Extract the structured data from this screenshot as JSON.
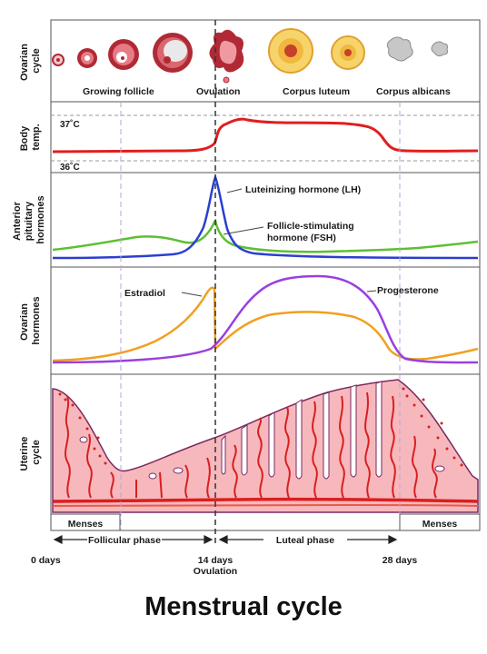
{
  "title": "Menstrual cycle",
  "colors": {
    "temperature": "#e01e1e",
    "lh": "#2b3fd0",
    "fsh": "#5cc033",
    "estradiol": "#f0a020",
    "progesterone": "#9a3fe0",
    "tissue": "#f7b8bd",
    "vessel": "#d91f1f",
    "follicle": "#b02a36"
  },
  "panels": {
    "ovarian": {
      "label_line1": "Ovarian",
      "label_line2": "cycle",
      "stage_growing": "Growing follicle",
      "stage_ovulation": "Ovulation",
      "stage_luteum": "Corpus luteum",
      "stage_albicans": "Corpus albicans"
    },
    "temp": {
      "label_line1": "Body",
      "label_line2": "temp.",
      "high": "37˚C",
      "low": "36˚C"
    },
    "pituitary": {
      "label_line1": "Anterior",
      "label_line2": "pituitary",
      "label_line3": "hormones",
      "lh": "Luteinizing hormone (LH)",
      "fsh_line1": "Follicle-stimulating",
      "fsh_line2": "hormone (FSH)"
    },
    "ovarian_hormones": {
      "label_line1": "Ovarian",
      "label_line2": "hormones",
      "estradiol": "Estradiol",
      "progesterone": "Progesterone"
    },
    "uterine": {
      "label_line1": "Uterine",
      "label_line2": "cycle"
    }
  },
  "phases": {
    "menses": "Menses",
    "follicular": "Follicular phase",
    "luteal": "Luteal phase"
  },
  "days": {
    "d0": "0 days",
    "d14": "14 days",
    "ovulation": "Ovulation",
    "d28": "28 days"
  }
}
